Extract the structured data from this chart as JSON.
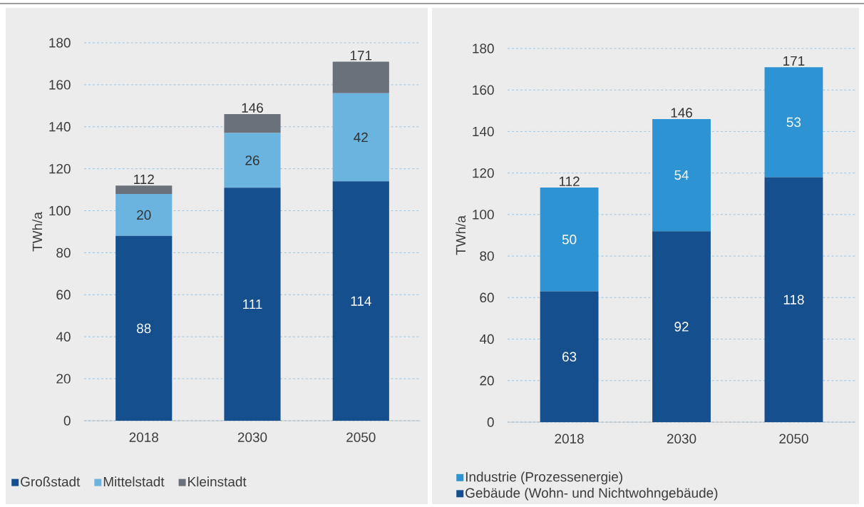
{
  "chart_data": [
    {
      "type": "bar",
      "stacked": true,
      "ylabel": "TWh/a",
      "categories": [
        "2018",
        "2030",
        "2050"
      ],
      "ylim": [
        0,
        180
      ],
      "yticks": [
        0,
        20,
        40,
        60,
        80,
        100,
        120,
        140,
        160,
        180
      ],
      "grid": "y",
      "legend": "bottom",
      "series": [
        {
          "name": "Großstadt",
          "color": "#154f8e",
          "values": [
            88,
            111,
            114
          ],
          "value_labels": [
            "88",
            "111",
            "114"
          ]
        },
        {
          "name": "Mittelstadt",
          "color": "#6cb4e0",
          "values": [
            20,
            26,
            42
          ],
          "value_labels": [
            "20",
            "26",
            "42"
          ]
        },
        {
          "name": "Kleinstadt",
          "color": "#6b717a",
          "values": [
            4,
            9,
            15
          ],
          "value_labels": [
            null,
            null,
            null
          ]
        }
      ],
      "totals": [
        "112",
        "146",
        "171"
      ]
    },
    {
      "type": "bar",
      "stacked": true,
      "ylabel": "TWh/a",
      "categories": [
        "2018",
        "2030",
        "2050"
      ],
      "ylim": [
        0,
        180
      ],
      "yticks": [
        0,
        20,
        40,
        60,
        80,
        100,
        120,
        140,
        160,
        180
      ],
      "grid": "y",
      "legend": "bottom",
      "series": [
        {
          "name": "Gebäude (Wohn- und Nichtwohngebäude)",
          "color": "#154f8e",
          "values": [
            63,
            92,
            118
          ],
          "value_labels": [
            "63",
            "92",
            "118"
          ]
        },
        {
          "name": "Industrie (Prozessenergie)",
          "color": "#2e93d2",
          "values": [
            50,
            54,
            53
          ],
          "value_labels": [
            "50",
            "54",
            "53"
          ]
        }
      ],
      "totals": [
        "112",
        "146",
        "171"
      ]
    }
  ]
}
